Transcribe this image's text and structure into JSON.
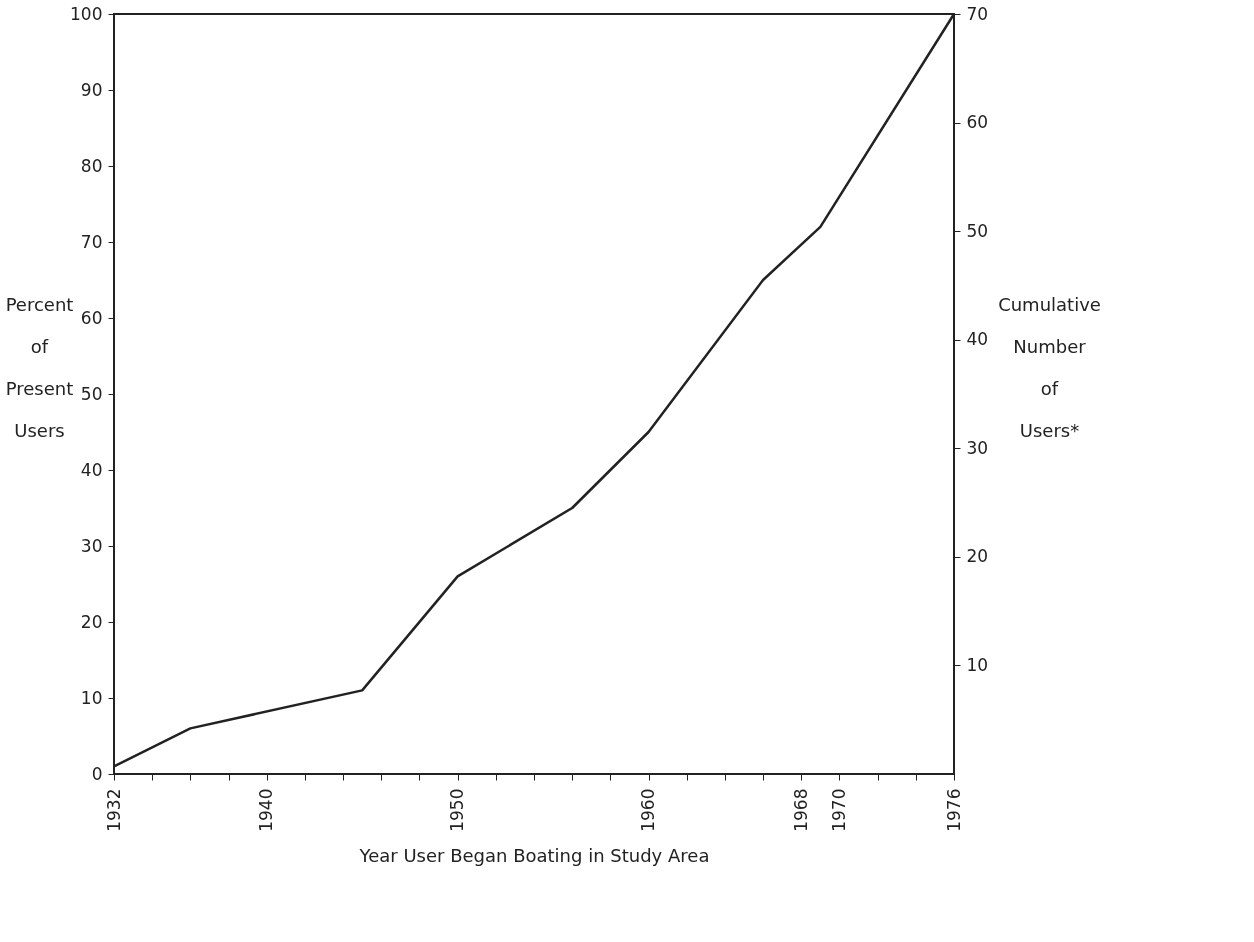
{
  "chart_data": {
    "type": "line",
    "xlabel": "Year User Began Boating in Study Area",
    "ylabel": "Percent of Present Users",
    "y2label": "Cumulative Number of Users*",
    "x": [
      1932,
      1936,
      1945,
      1950,
      1956,
      1960,
      1966,
      1969,
      1976
    ],
    "series": [
      {
        "color": "#222222",
        "values": [
          1,
          6,
          11,
          26,
          35,
          45,
          65,
          72,
          100
        ]
      }
    ],
    "xlim": [
      1932,
      1976
    ],
    "xticks": [
      1932,
      {
        "value": 1934,
        "label": null
      },
      {
        "value": 1936,
        "label": null
      },
      {
        "value": 1938,
        "label": null
      },
      1940,
      {
        "value": 1942,
        "label": null
      },
      {
        "value": 1944,
        "label": null
      },
      {
        "value": 1946,
        "label": null
      },
      {
        "value": 1948,
        "label": null
      },
      1950,
      {
        "value": 1952,
        "label": null
      },
      {
        "value": 1954,
        "label": null
      },
      {
        "value": 1956,
        "label": null
      },
      {
        "value": 1958,
        "label": null
      },
      1960,
      {
        "value": 1962,
        "label": null
      },
      {
        "value": 1964,
        "label": null
      },
      {
        "value": 1966,
        "label": null
      },
      1968,
      1970,
      {
        "value": 1972,
        "label": null
      },
      {
        "value": 1974,
        "label": null
      },
      1976
    ],
    "ylim": [
      0,
      100
    ],
    "yticks": [
      0,
      10,
      20,
      30,
      40,
      50,
      60,
      70,
      80,
      90,
      100
    ],
    "y2lim": [
      0,
      70
    ],
    "y2ticks": [
      10,
      20,
      30,
      40,
      50,
      60,
      70
    ],
    "grid": false,
    "marker": "none",
    "line_style": "solid"
  }
}
